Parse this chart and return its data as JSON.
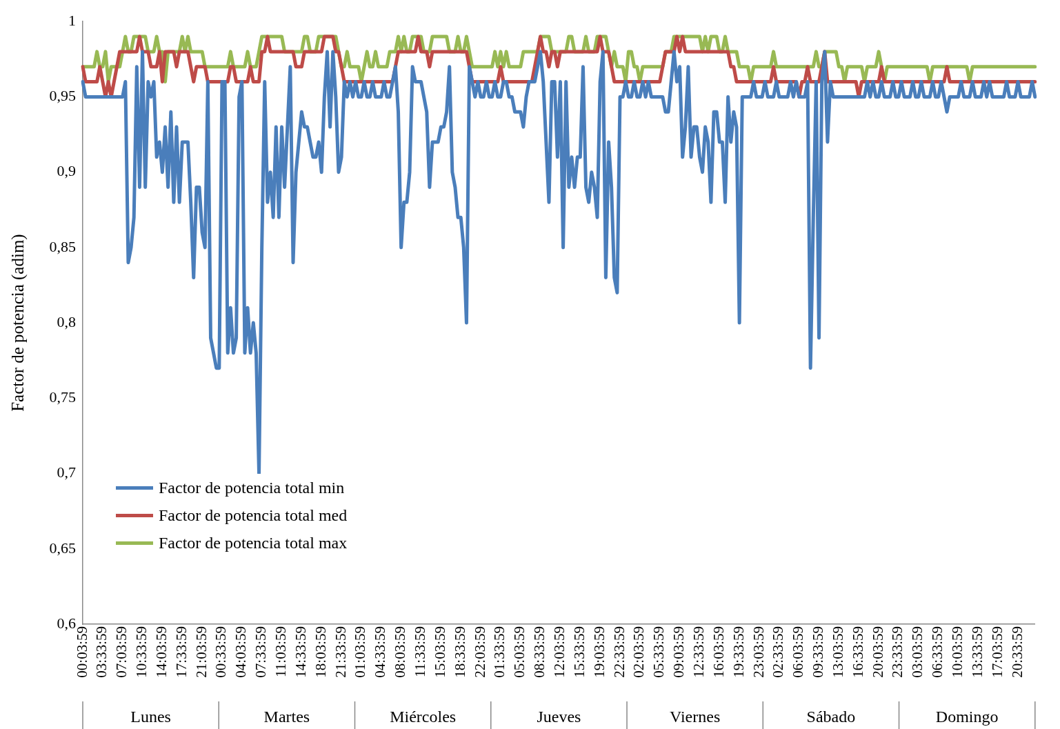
{
  "chart_data": {
    "type": "line",
    "ylabel": "Factor de potencia (adim)",
    "marker": "none",
    "line_style": "solid",
    "legend": "bottom left",
    "annotations": [
      "Lunes",
      "Martes",
      "Miércoles",
      "Jueves",
      "Viernes",
      "Sábado",
      "Domingo"
    ],
    "categories": [
      "00:03:59",
      null,
      null,
      null,
      null,
      null,
      null,
      "03:33:59",
      null,
      null,
      null,
      null,
      null,
      null,
      "07:03:59",
      null,
      null,
      null,
      null,
      null,
      null,
      "10:33:59",
      null,
      null,
      null,
      null,
      null,
      null,
      "14:03:59",
      null,
      null,
      null,
      null,
      null,
      null,
      "17:33:59",
      null,
      null,
      null,
      null,
      null,
      null,
      "21:03:59",
      null,
      null,
      null,
      null,
      null,
      null,
      "00:33:59",
      null,
      null,
      null,
      null,
      null,
      null,
      "04:03:59",
      null,
      null,
      null,
      null,
      null,
      null,
      "07:33:59",
      null,
      null,
      null,
      null,
      null,
      null,
      "11:03:59",
      null,
      null,
      null,
      null,
      null,
      null,
      "14:33:59",
      null,
      null,
      null,
      null,
      null,
      null,
      "18:03:59",
      null,
      null,
      null,
      null,
      null,
      null,
      "21:33:59",
      null,
      null,
      null,
      null,
      null,
      null,
      "01:03:59",
      null,
      null,
      null,
      null,
      null,
      null,
      "04:33:59",
      null,
      null,
      null,
      null,
      null,
      null,
      "08:03:59",
      null,
      null,
      null,
      null,
      null,
      null,
      "11:33:59",
      null,
      null,
      null,
      null,
      null,
      null,
      "15:03:59",
      null,
      null,
      null,
      null,
      null,
      null,
      "18:33:59",
      null,
      null,
      null,
      null,
      null,
      null,
      "22:03:59",
      null,
      null,
      null,
      null,
      null,
      null,
      "01:33:59",
      null,
      null,
      null,
      null,
      null,
      null,
      "05:03:59",
      null,
      null,
      null,
      null,
      null,
      null,
      "08:33:59",
      null,
      null,
      null,
      null,
      null,
      null,
      "12:03:59",
      null,
      null,
      null,
      null,
      null,
      null,
      "15:33:59",
      null,
      null,
      null,
      null,
      null,
      null,
      "19:03:59",
      null,
      null,
      null,
      null,
      null,
      null,
      "22:33:59",
      null,
      null,
      null,
      null,
      null,
      null,
      "02:03:59",
      null,
      null,
      null,
      null,
      null,
      null,
      "05:33:59",
      null,
      null,
      null,
      null,
      null,
      null,
      "09:03:59",
      null,
      null,
      null,
      null,
      null,
      null,
      "12:33:59",
      null,
      null,
      null,
      null,
      null,
      null,
      "16:03:59",
      null,
      null,
      null,
      null,
      null,
      null,
      "19:33:59",
      null,
      null,
      null,
      null,
      null,
      null,
      "23:03:59",
      null,
      null,
      null,
      null,
      null,
      null,
      "02:33:59",
      null,
      null,
      null,
      null,
      null,
      null,
      "06:03:59",
      null,
      null,
      null,
      null,
      null,
      null,
      "09:33:59",
      null,
      null,
      null,
      null,
      null,
      null,
      "13:03:59",
      null,
      null,
      null,
      null,
      null,
      null,
      "16:33:59",
      null,
      null,
      null,
      null,
      null,
      null,
      "20:03:59",
      null,
      null,
      null,
      null,
      null,
      null,
      "23:33:59",
      null,
      null,
      null,
      null,
      null,
      null,
      "03:03:59",
      null,
      null,
      null,
      null,
      null,
      null,
      "06:33:59",
      null,
      null,
      null,
      null,
      null,
      null,
      "10:03:59",
      null,
      null,
      null,
      null,
      null,
      null,
      "13:33:59",
      null,
      null,
      null,
      null,
      null,
      null,
      "17:03:59",
      null,
      null,
      null,
      null,
      null,
      null,
      "20:33:59",
      null,
      null,
      null,
      null,
      null,
      null
    ],
    "ylim": [
      0.6,
      1
    ],
    "yticks": [
      {
        "value": 0.6,
        "label": "0,6"
      },
      {
        "value": 0.65,
        "label": "0,65"
      },
      {
        "value": 0.7,
        "label": "0,7"
      },
      {
        "value": 0.75,
        "label": "0,75"
      },
      {
        "value": 0.8,
        "label": "0,8"
      },
      {
        "value": 0.85,
        "label": "0,85"
      },
      {
        "value": 0.9,
        "label": "0,9"
      },
      {
        "value": 0.95,
        "label": "0,95"
      },
      1
    ],
    "series": [
      {
        "name": "Factor de potencia total min",
        "color": "#4a7ebb",
        "values": [
          0.96,
          0.95,
          0.95,
          0.95,
          0.95,
          0.95,
          0.95,
          0.95,
          0.95,
          0.95,
          0.95,
          0.95,
          0.95,
          0.95,
          0.95,
          0.96,
          0.84,
          0.85,
          0.87,
          0.97,
          0.89,
          0.98,
          0.89,
          0.96,
          0.95,
          0.96,
          0.91,
          0.92,
          0.9,
          0.93,
          0.89,
          0.94,
          0.88,
          0.93,
          0.88,
          0.92,
          0.92,
          0.92,
          0.88,
          0.83,
          0.89,
          0.89,
          0.86,
          0.85,
          0.96,
          0.79,
          0.78,
          0.77,
          0.77,
          0.96,
          0.96,
          0.78,
          0.81,
          0.78,
          0.79,
          0.95,
          0.96,
          0.78,
          0.81,
          0.78,
          0.8,
          0.78,
          0.7,
          0.85,
          0.96,
          0.88,
          0.9,
          0.87,
          0.93,
          0.87,
          0.93,
          0.89,
          0.93,
          0.97,
          0.84,
          0.9,
          0.92,
          0.94,
          0.93,
          0.93,
          0.92,
          0.91,
          0.91,
          0.92,
          0.9,
          0.95,
          0.98,
          0.93,
          0.98,
          0.95,
          0.9,
          0.91,
          0.96,
          0.95,
          0.96,
          0.95,
          0.96,
          0.95,
          0.95,
          0.96,
          0.95,
          0.95,
          0.96,
          0.95,
          0.95,
          0.95,
          0.96,
          0.95,
          0.95,
          0.96,
          0.97,
          0.94,
          0.85,
          0.88,
          0.88,
          0.9,
          0.97,
          0.96,
          0.96,
          0.96,
          0.95,
          0.94,
          0.89,
          0.92,
          0.92,
          0.92,
          0.93,
          0.93,
          0.94,
          0.97,
          0.9,
          0.89,
          0.87,
          0.87,
          0.85,
          0.8,
          0.97,
          0.96,
          0.95,
          0.96,
          0.95,
          0.95,
          0.96,
          0.95,
          0.95,
          0.96,
          0.95,
          0.95,
          0.96,
          0.96,
          0.95,
          0.95,
          0.94,
          0.94,
          0.94,
          0.93,
          0.95,
          0.96,
          0.96,
          0.96,
          0.97,
          0.98,
          0.96,
          0.92,
          0.88,
          0.96,
          0.96,
          0.91,
          0.96,
          0.85,
          0.96,
          0.89,
          0.91,
          0.89,
          0.91,
          0.91,
          0.97,
          0.89,
          0.88,
          0.9,
          0.89,
          0.87,
          0.96,
          0.98,
          0.83,
          0.92,
          0.89,
          0.83,
          0.82,
          0.95,
          0.95,
          0.96,
          0.95,
          0.95,
          0.96,
          0.95,
          0.95,
          0.96,
          0.95,
          0.96,
          0.95,
          0.95,
          0.95,
          0.95,
          0.95,
          0.94,
          0.94,
          0.96,
          0.98,
          0.96,
          0.97,
          0.91,
          0.93,
          0.97,
          0.91,
          0.93,
          0.93,
          0.91,
          0.9,
          0.93,
          0.92,
          0.88,
          0.94,
          0.94,
          0.92,
          0.92,
          0.88,
          0.95,
          0.92,
          0.94,
          0.93,
          0.8,
          0.95,
          0.95,
          0.95,
          0.95,
          0.96,
          0.95,
          0.95,
          0.95,
          0.96,
          0.95,
          0.95,
          0.95,
          0.96,
          0.95,
          0.95,
          0.95,
          0.95,
          0.96,
          0.95,
          0.96,
          0.95,
          0.95,
          0.95,
          0.96,
          0.77,
          0.87,
          0.96,
          0.79,
          0.96,
          0.98,
          0.92,
          0.96,
          0.95,
          0.95,
          0.95,
          0.95,
          0.95,
          0.95,
          0.95,
          0.95,
          0.95,
          0.95,
          0.95,
          0.95,
          0.96,
          0.95,
          0.96,
          0.95,
          0.95,
          0.96,
          0.95,
          0.95,
          0.95,
          0.96,
          0.95,
          0.95,
          0.96,
          0.95,
          0.95,
          0.95,
          0.96,
          0.95,
          0.95,
          0.96,
          0.95,
          0.95,
          0.95,
          0.96,
          0.95,
          0.95,
          0.96,
          0.95,
          0.94,
          0.95,
          0.95,
          0.95,
          0.95,
          0.96,
          0.95,
          0.95,
          0.95,
          0.96,
          0.95,
          0.95,
          0.95,
          0.96,
          0.95,
          0.96,
          0.95,
          0.95,
          0.95,
          0.95,
          0.95,
          0.96,
          0.95,
          0.95,
          0.95,
          0.96,
          0.95,
          0.95,
          0.95,
          0.95,
          0.96,
          0.95
        ]
      },
      {
        "name": "Factor de potencia total med",
        "color": "#be4b48",
        "values": [
          0.97,
          0.96,
          0.96,
          0.96,
          0.96,
          0.96,
          0.97,
          0.96,
          0.95,
          0.96,
          0.95,
          0.96,
          0.97,
          0.98,
          0.98,
          0.98,
          0.98,
          0.98,
          0.98,
          0.98,
          0.99,
          0.98,
          0.98,
          0.98,
          0.97,
          0.97,
          0.97,
          0.98,
          0.96,
          0.98,
          0.98,
          0.98,
          0.98,
          0.97,
          0.98,
          0.98,
          0.98,
          0.98,
          0.97,
          0.96,
          0.97,
          0.97,
          0.97,
          0.97,
          0.96,
          0.96,
          0.96,
          0.96,
          0.96,
          0.96,
          0.96,
          0.96,
          0.97,
          0.97,
          0.96,
          0.96,
          0.96,
          0.96,
          0.96,
          0.97,
          0.96,
          0.96,
          0.96,
          0.98,
          0.98,
          0.99,
          0.98,
          0.98,
          0.98,
          0.98,
          0.98,
          0.98,
          0.98,
          0.98,
          0.98,
          0.97,
          0.97,
          0.97,
          0.98,
          0.98,
          0.98,
          0.98,
          0.98,
          0.98,
          0.98,
          0.99,
          0.99,
          0.99,
          0.99,
          0.98,
          0.98,
          0.97,
          0.96,
          0.96,
          0.96,
          0.96,
          0.96,
          0.96,
          0.96,
          0.96,
          0.96,
          0.96,
          0.96,
          0.96,
          0.96,
          0.96,
          0.96,
          0.96,
          0.96,
          0.96,
          0.97,
          0.98,
          0.98,
          0.98,
          0.98,
          0.98,
          0.98,
          0.98,
          0.99,
          0.98,
          0.98,
          0.98,
          0.97,
          0.98,
          0.98,
          0.98,
          0.98,
          0.98,
          0.98,
          0.98,
          0.98,
          0.98,
          0.98,
          0.98,
          0.98,
          0.98,
          0.97,
          0.96,
          0.96,
          0.96,
          0.96,
          0.96,
          0.96,
          0.96,
          0.96,
          0.96,
          0.96,
          0.97,
          0.96,
          0.96,
          0.96,
          0.96,
          0.96,
          0.96,
          0.96,
          0.96,
          0.96,
          0.96,
          0.96,
          0.97,
          0.98,
          0.99,
          0.98,
          0.98,
          0.97,
          0.98,
          0.98,
          0.97,
          0.98,
          0.98,
          0.98,
          0.98,
          0.98,
          0.98,
          0.98,
          0.98,
          0.98,
          0.98,
          0.98,
          0.98,
          0.98,
          0.98,
          0.99,
          0.98,
          0.98,
          0.98,
          0.97,
          0.96,
          0.96,
          0.96,
          0.96,
          0.96,
          0.96,
          0.96,
          0.96,
          0.96,
          0.96,
          0.96,
          0.96,
          0.96,
          0.96,
          0.96,
          0.96,
          0.96,
          0.97,
          0.98,
          0.98,
          0.98,
          0.98,
          0.99,
          0.98,
          0.99,
          0.98,
          0.98,
          0.98,
          0.98,
          0.98,
          0.98,
          0.98,
          0.98,
          0.98,
          0.98,
          0.98,
          0.98,
          0.98,
          0.98,
          0.98,
          0.98,
          0.97,
          0.97,
          0.96,
          0.96,
          0.96,
          0.96,
          0.96,
          0.96,
          0.96,
          0.96,
          0.96,
          0.96,
          0.96,
          0.96,
          0.96,
          0.97,
          0.96,
          0.96,
          0.96,
          0.96,
          0.96,
          0.96,
          0.96,
          0.96,
          0.95,
          0.96,
          0.96,
          0.97,
          0.96,
          0.96,
          0.96,
          0.96,
          0.97,
          0.98,
          0.96,
          0.96,
          0.96,
          0.96,
          0.96,
          0.96,
          0.96,
          0.96,
          0.96,
          0.96,
          0.96,
          0.95,
          0.96,
          0.96,
          0.96,
          0.96,
          0.96,
          0.96,
          0.96,
          0.97,
          0.96,
          0.96,
          0.96,
          0.96,
          0.96,
          0.96,
          0.96,
          0.96,
          0.96,
          0.96,
          0.96,
          0.96,
          0.96,
          0.96,
          0.96,
          0.96,
          0.96,
          0.96,
          0.96,
          0.96,
          0.96,
          0.96,
          0.97,
          0.96,
          0.96,
          0.96,
          0.96,
          0.96,
          0.96,
          0.96,
          0.96,
          0.96,
          0.96,
          0.96,
          0.96,
          0.96,
          0.96,
          0.96,
          0.96,
          0.96,
          0.96,
          0.96,
          0.96,
          0.96,
          0.96,
          0.96,
          0.96,
          0.96,
          0.96,
          0.96,
          0.96,
          0.96,
          0.96,
          0.96
        ]
      },
      {
        "name": "Factor de potencia total max",
        "color": "#98b954",
        "values": [
          0.97,
          0.97,
          0.97,
          0.97,
          0.97,
          0.98,
          0.97,
          0.97,
          0.98,
          0.96,
          0.97,
          0.97,
          0.97,
          0.97,
          0.98,
          0.99,
          0.98,
          0.98,
          0.99,
          0.99,
          0.99,
          0.99,
          0.99,
          0.98,
          0.98,
          0.98,
          0.99,
          0.98,
          0.98,
          0.96,
          0.98,
          0.98,
          0.98,
          0.98,
          0.98,
          0.99,
          0.98,
          0.99,
          0.98,
          0.98,
          0.98,
          0.98,
          0.98,
          0.97,
          0.97,
          0.97,
          0.97,
          0.97,
          0.97,
          0.97,
          0.97,
          0.97,
          0.98,
          0.97,
          0.97,
          0.97,
          0.97,
          0.97,
          0.98,
          0.97,
          0.97,
          0.97,
          0.98,
          0.99,
          0.99,
          0.99,
          0.99,
          0.99,
          0.99,
          0.99,
          0.99,
          0.98,
          0.98,
          0.98,
          0.98,
          0.98,
          0.98,
          0.98,
          0.99,
          0.99,
          0.98,
          0.98,
          0.98,
          0.99,
          0.99,
          0.99,
          0.99,
          0.99,
          0.99,
          0.99,
          0.98,
          0.97,
          0.97,
          0.98,
          0.97,
          0.97,
          0.97,
          0.97,
          0.96,
          0.97,
          0.98,
          0.97,
          0.97,
          0.98,
          0.97,
          0.97,
          0.97,
          0.97,
          0.98,
          0.98,
          0.98,
          0.99,
          0.98,
          0.99,
          0.98,
          0.98,
          0.99,
          0.99,
          0.99,
          0.99,
          0.98,
          0.98,
          0.98,
          0.99,
          0.99,
          0.99,
          0.99,
          0.99,
          0.99,
          0.98,
          0.98,
          0.98,
          0.99,
          0.98,
          0.98,
          0.99,
          0.98,
          0.97,
          0.97,
          0.97,
          0.97,
          0.97,
          0.97,
          0.97,
          0.97,
          0.98,
          0.97,
          0.98,
          0.97,
          0.98,
          0.97,
          0.97,
          0.97,
          0.97,
          0.97,
          0.98,
          0.98,
          0.98,
          0.98,
          0.98,
          0.98,
          0.99,
          0.99,
          0.99,
          0.99,
          0.98,
          0.98,
          0.98,
          0.98,
          0.98,
          0.98,
          0.99,
          0.99,
          0.98,
          0.98,
          0.98,
          0.98,
          0.99,
          0.98,
          0.98,
          0.98,
          0.99,
          0.99,
          0.99,
          0.99,
          0.98,
          0.97,
          0.98,
          0.97,
          0.97,
          0.97,
          0.96,
          0.98,
          0.98,
          0.97,
          0.97,
          0.96,
          0.97,
          0.97,
          0.97,
          0.97,
          0.97,
          0.97,
          0.97,
          0.97,
          0.98,
          0.98,
          0.98,
          0.99,
          0.99,
          0.99,
          0.99,
          0.99,
          0.99,
          0.99,
          0.99,
          0.99,
          0.99,
          0.98,
          0.99,
          0.98,
          0.99,
          0.99,
          0.99,
          0.98,
          0.98,
          0.99,
          0.98,
          0.98,
          0.98,
          0.98,
          0.97,
          0.97,
          0.97,
          0.97,
          0.96,
          0.97,
          0.97,
          0.97,
          0.97,
          0.97,
          0.97,
          0.97,
          0.98,
          0.97,
          0.97,
          0.97,
          0.97,
          0.97,
          0.97,
          0.97,
          0.97,
          0.97,
          0.97,
          0.97,
          0.97,
          0.97,
          0.97,
          0.98,
          0.97,
          0.97,
          0.98,
          0.98,
          0.98,
          0.98,
          0.98,
          0.97,
          0.97,
          0.96,
          0.97,
          0.97,
          0.97,
          0.97,
          0.97,
          0.97,
          0.96,
          0.97,
          0.97,
          0.97,
          0.97,
          0.98,
          0.97,
          0.96,
          0.97,
          0.97,
          0.97,
          0.97,
          0.97,
          0.97,
          0.97,
          0.97,
          0.97,
          0.97,
          0.97,
          0.97,
          0.97,
          0.97,
          0.97,
          0.96,
          0.97,
          0.97,
          0.97,
          0.97,
          0.97,
          0.97,
          0.97,
          0.97,
          0.97,
          0.97,
          0.97,
          0.97,
          0.97,
          0.96,
          0.97,
          0.97,
          0.97,
          0.97,
          0.97,
          0.97,
          0.97,
          0.97,
          0.97,
          0.97,
          0.97,
          0.97,
          0.97,
          0.97,
          0.97,
          0.97,
          0.97,
          0.97,
          0.97,
          0.97,
          0.97,
          0.97,
          0.97
        ]
      }
    ]
  }
}
